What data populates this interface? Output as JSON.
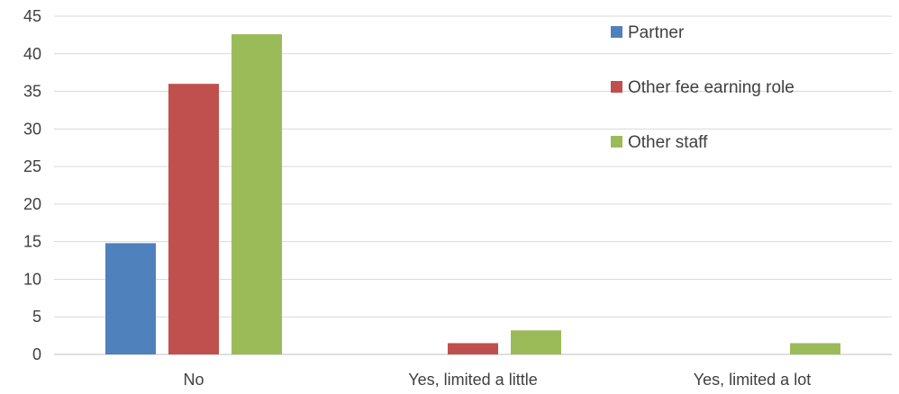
{
  "chart_data": {
    "type": "bar",
    "title": "",
    "xlabel": "",
    "ylabel": "",
    "categories": [
      "No",
      "Yes, limited a little",
      "Yes, limited a lot"
    ],
    "series": [
      {
        "name": "Partner",
        "values": [
          14.8,
          0,
          0
        ],
        "color": "#4F81BD"
      },
      {
        "name": "Other fee earning role",
        "values": [
          36,
          1.5,
          0
        ],
        "color": "#C0504D"
      },
      {
        "name": "Other staff",
        "values": [
          42.6,
          3.2,
          1.5
        ],
        "color": "#9BBB59"
      }
    ],
    "ylim": [
      0,
      45
    ],
    "yticks": [
      0,
      5,
      10,
      15,
      20,
      25,
      30,
      35,
      40,
      45
    ],
    "grid": true,
    "legend_position": "top-right"
  }
}
